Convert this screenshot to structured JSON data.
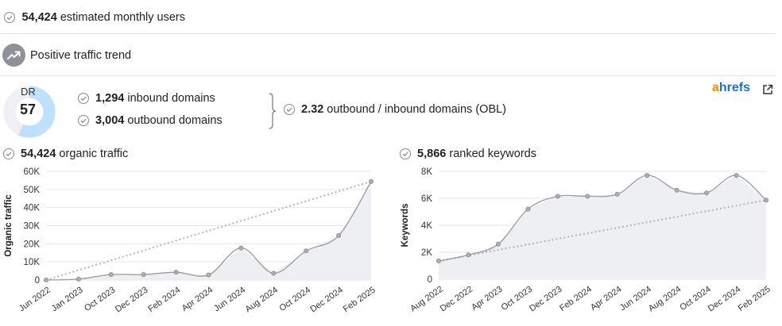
{
  "summary": {
    "monthly_users_value": "54,424",
    "monthly_users_label": "estimated monthly users",
    "trend_label": "Positive traffic trend"
  },
  "authority": {
    "dr_label": "DR",
    "dr_value": "57",
    "dr_fraction": 0.57,
    "inbound_value": "1,294",
    "inbound_label": "inbound domains",
    "outbound_value": "3,004",
    "outbound_label": "outbound domains",
    "obl_value": "2.32",
    "obl_label": "outbound / inbound domains (OBL)",
    "brand_a": "a",
    "brand_rest": "hrefs"
  },
  "colors": {
    "gauge_fill": "#bfe0ff",
    "gauge_track": "#eef0f3",
    "brand_orange": "#ff8800",
    "brand_blue": "#1e6fd9",
    "line": "#9a9a9a",
    "area": "#eeeff3",
    "trendline": "#b5b5b5"
  },
  "icons": {
    "check": "check-circle-icon",
    "trend": "trending-up-icon",
    "brace": "curly-brace-icon",
    "external": "external-link-icon"
  },
  "organic": {
    "value": "54,424",
    "label": "organic traffic"
  },
  "keywords": {
    "value": "5,866",
    "label": "ranked keywords"
  },
  "chart_data": [
    {
      "type": "area",
      "ylabel": "Organic traffic",
      "ylim": [
        0,
        60000
      ],
      "yticks": [
        "0",
        "10K",
        "20K",
        "30K",
        "40K",
        "50K",
        "60K"
      ],
      "yticks_values": [
        0,
        10000,
        20000,
        30000,
        40000,
        50000,
        60000
      ],
      "xticks": [
        "Jun 2022",
        "Jan 2023",
        "Oct 2023",
        "Dec 2023",
        "Feb 2024",
        "Apr 2024",
        "Jun 2024",
        "Aug 2024",
        "Oct 2024",
        "Dec 2024",
        "Feb 2025"
      ],
      "values": [
        0,
        500,
        3000,
        3000,
        4300,
        2800,
        17700,
        3700,
        16100,
        24500,
        54424
      ],
      "trendline": [
        0,
        54424
      ],
      "grid": true
    },
    {
      "type": "area",
      "ylabel": "Keywords",
      "ylim": [
        0,
        8000
      ],
      "yticks": [
        "0",
        "2K",
        "4K",
        "6K",
        "8K"
      ],
      "yticks_values": [
        0,
        2000,
        4000,
        6000,
        8000
      ],
      "xticks": [
        "Aug 2022",
        "Dec 2022",
        "Apr 2023",
        "Oct 2023",
        "Dec 2023",
        "Feb 2024",
        "Apr 2024",
        "Jun 2024",
        "Aug 2024",
        "Oct 2024",
        "Dec 2024",
        "Feb 2025"
      ],
      "values": [
        1350,
        1800,
        2600,
        5200,
        6150,
        6150,
        6300,
        7700,
        6600,
        6400,
        7700,
        5866
      ],
      "trendline": [
        1350,
        5866
      ],
      "grid": true
    }
  ]
}
